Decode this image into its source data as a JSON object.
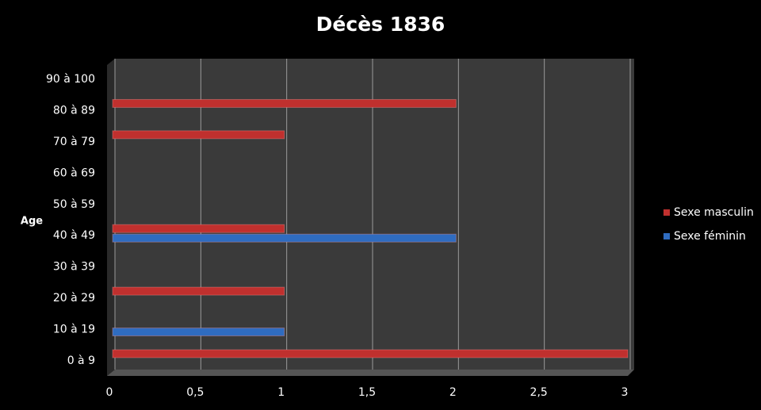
{
  "chart_data": {
    "type": "bar",
    "orientation": "horizontal",
    "title": "Décès 1836",
    "ylabel": "Age",
    "categories": [
      "0 à 9",
      "10 à 19",
      "20 à 29",
      "30 à 39",
      "40 à 49",
      "50 à 59",
      "60 à 69",
      "70 à 79",
      "80 à 89",
      "90 à 100"
    ],
    "series": [
      {
        "name": "Sexe masculin",
        "color": "#c0302e",
        "values": [
          3,
          0,
          1,
          0,
          1,
          0,
          0,
          1,
          2,
          0
        ]
      },
      {
        "name": "Sexe féminin",
        "color": "#2f6cc0",
        "values": [
          0,
          1,
          0,
          0,
          2,
          0,
          0,
          0,
          0,
          0
        ]
      }
    ],
    "xlim": [
      0,
      3
    ],
    "xticks": [
      0,
      {
        "value": 0.5,
        "label": "0,5"
      },
      1,
      {
        "value": 1.5,
        "label": "1,5"
      },
      2,
      {
        "value": 2.5,
        "label": "2,5"
      },
      3
    ],
    "grid": true,
    "legend": "right"
  }
}
